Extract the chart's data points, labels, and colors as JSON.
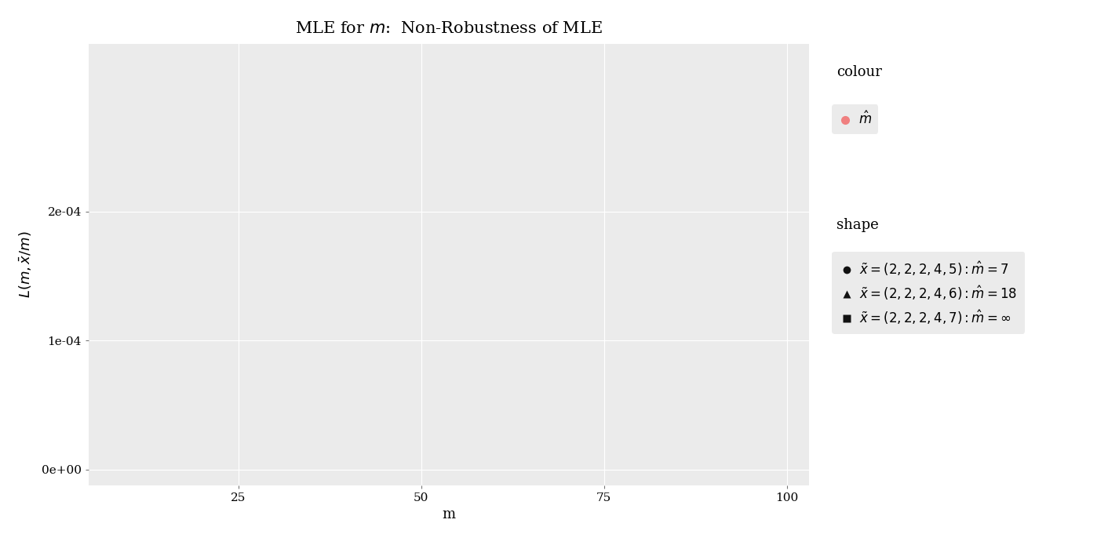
{
  "title": "MLE for $m$:  Non-Robustness of MLE",
  "xlabel": "m",
  "ylabel": "$L(m, \\bar{x}/m)$",
  "bg_color": "#EBEBEB",
  "fig_bg_color": "#FFFFFF",
  "datasets": [
    {
      "x_obs": [
        2,
        2,
        2,
        4,
        5
      ],
      "mle_m": 7,
      "marker": "o",
      "marker_size": 16,
      "color_normal": "#111111",
      "color_mle": "#F08080",
      "label": "$\\tilde{x} = (2,2,2,4,5) : \\hat{m} = 7$"
    },
    {
      "x_obs": [
        2,
        2,
        2,
        4,
        6
      ],
      "mle_m": 18,
      "marker": "^",
      "marker_size": 16,
      "color_normal": "#111111",
      "color_mle": "#F08080",
      "label": "$\\tilde{x} = (2,2,2,4,6) : \\hat{m} = 18$"
    },
    {
      "x_obs": [
        2,
        2,
        2,
        4,
        7
      ],
      "mle_m": null,
      "marker": "s",
      "marker_size": 16,
      "color_normal": "#111111",
      "color_mle": "#F08080",
      "label": "$\\tilde{x} = (2,2,2,4,7) : \\hat{m} = \\infty$"
    }
  ],
  "m_max": 100,
  "colour_legend_title": "colour",
  "shape_legend_title": "shape",
  "mle_label": "$\\hat{m}$",
  "grid_color": "#FFFFFF",
  "title_fontsize": 15,
  "axis_fontsize": 13,
  "tick_fontsize": 11,
  "legend_fontsize": 12
}
